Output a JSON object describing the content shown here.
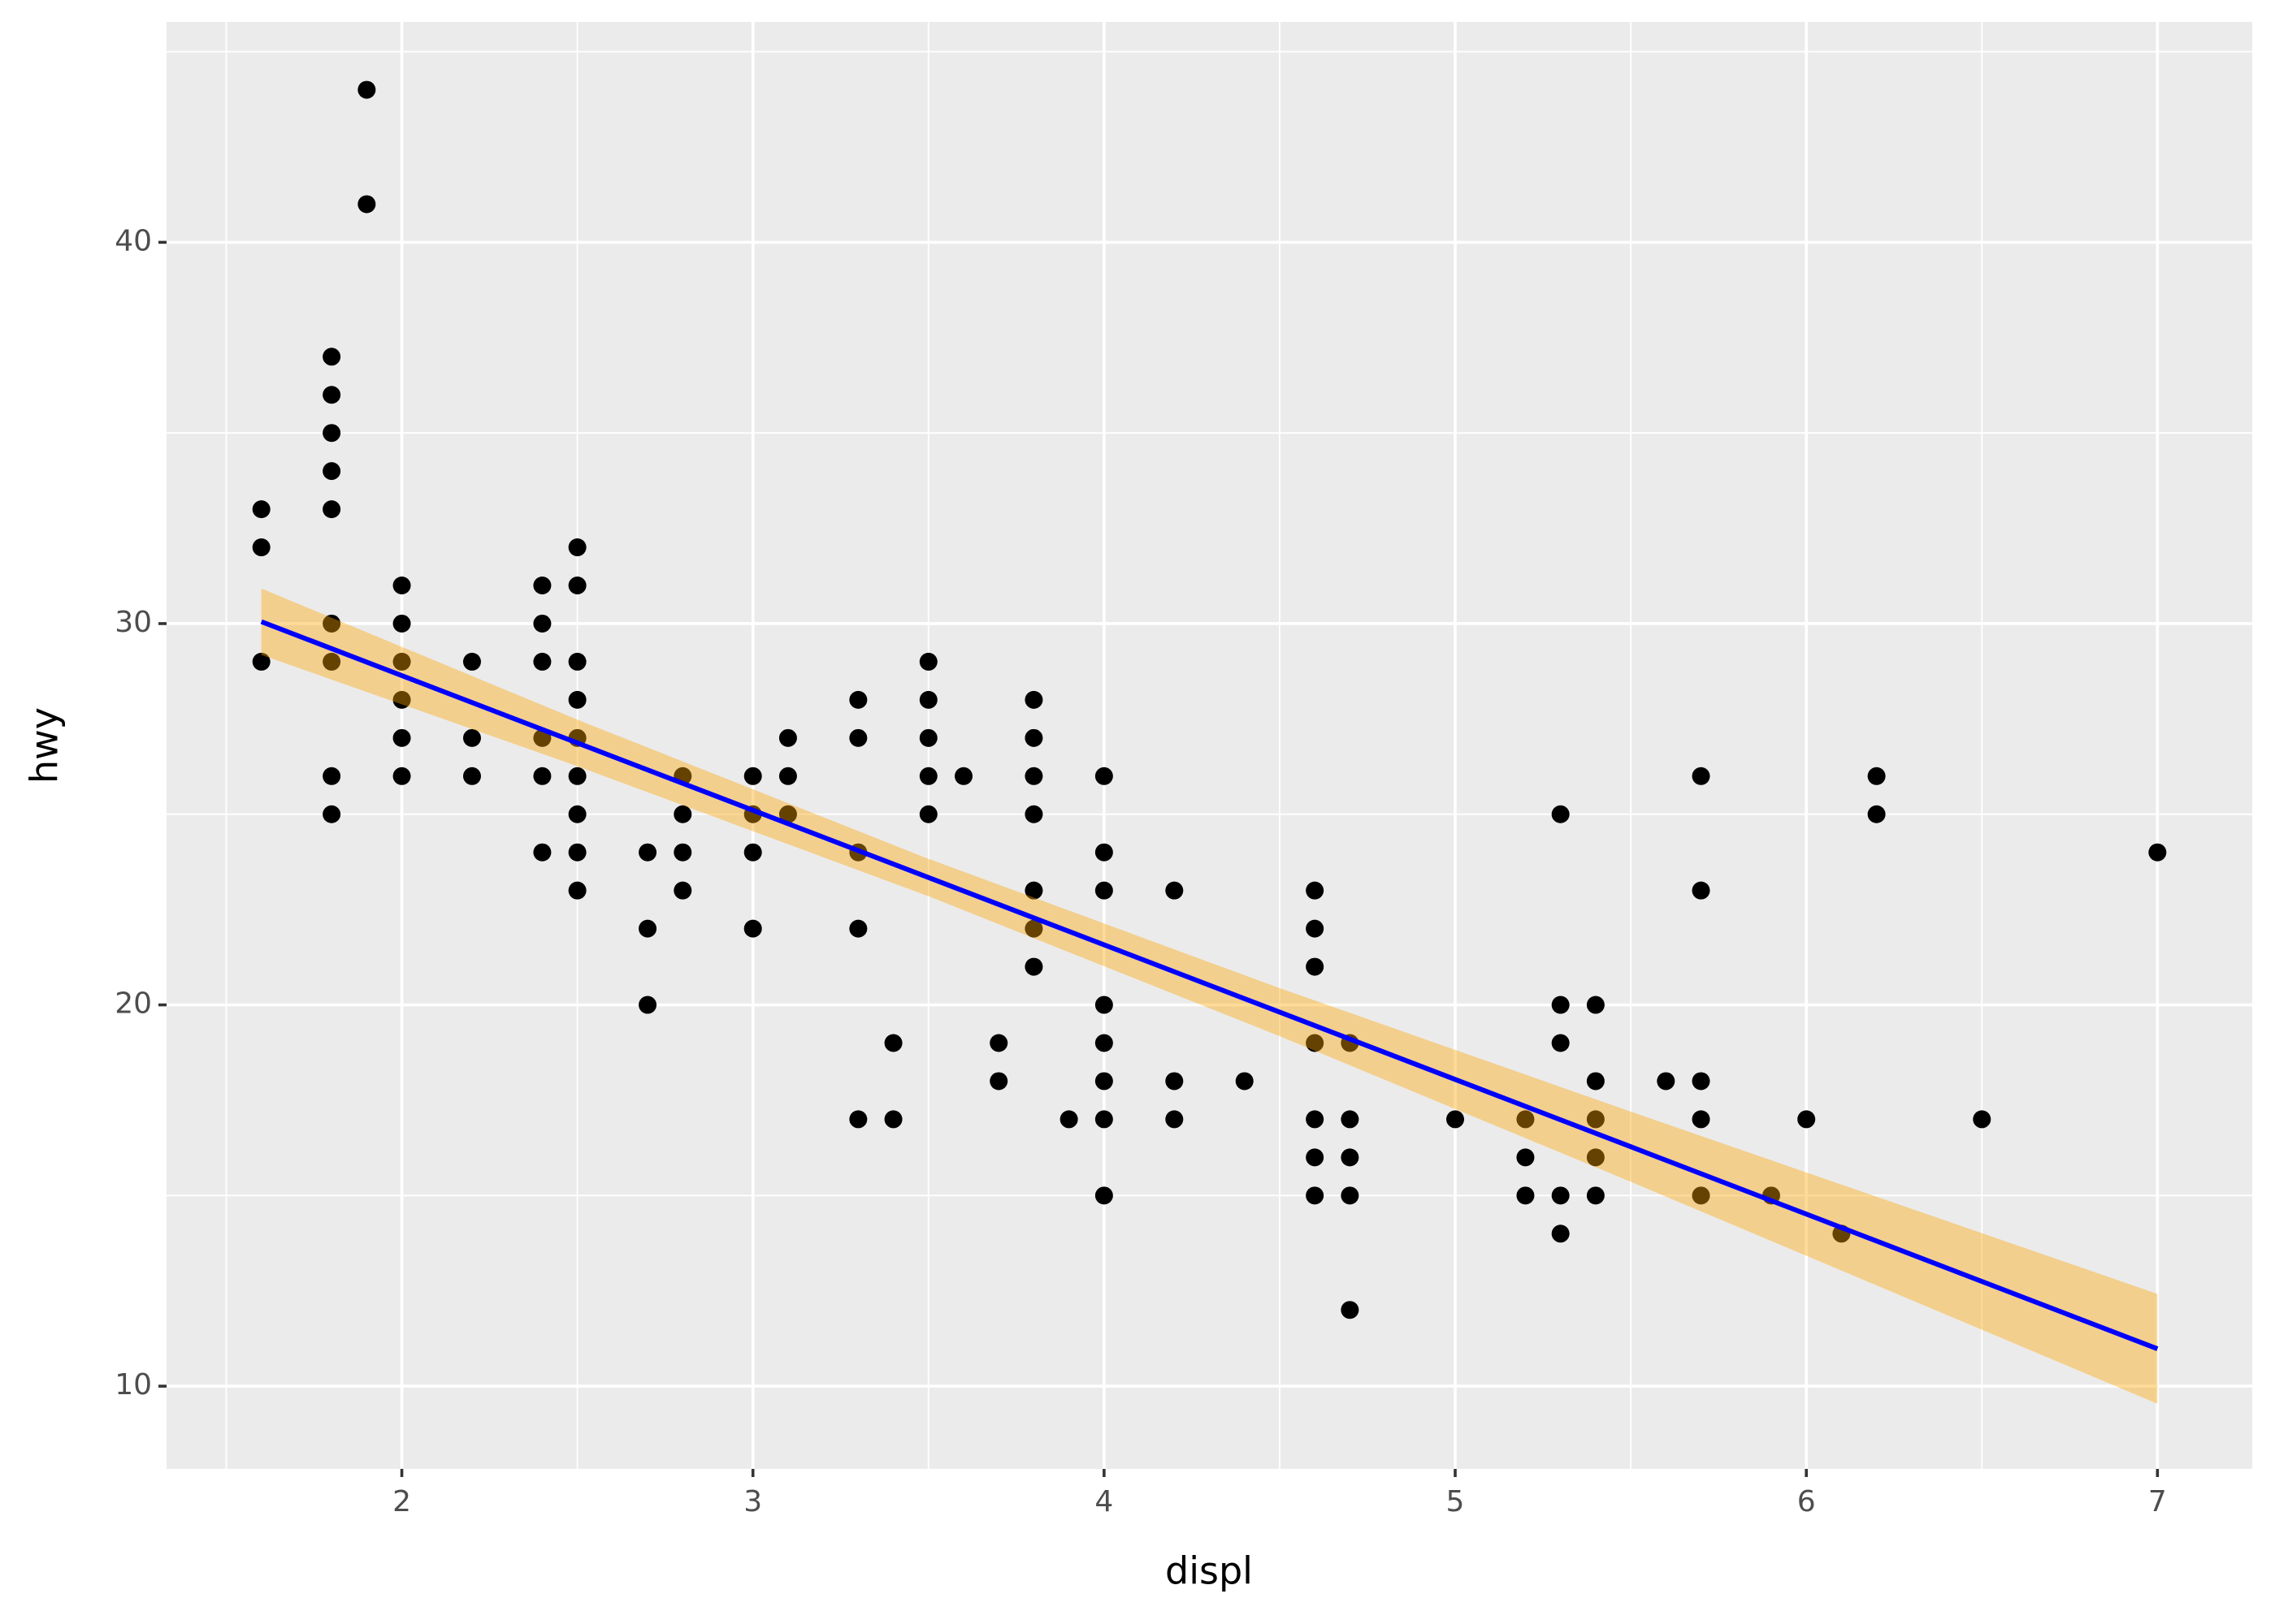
{
  "chart_data": {
    "type": "scatter",
    "x_label": "displ",
    "y_label": "hwy",
    "x": [
      1.6,
      1.6,
      1.6,
      1.8,
      1.8,
      1.8,
      1.8,
      1.8,
      1.8,
      1.8,
      1.8,
      1.8,
      1.9,
      1.9,
      2.0,
      2.0,
      2.0,
      2.0,
      2.0,
      2.0,
      2.2,
      2.2,
      2.2,
      2.4,
      2.4,
      2.4,
      2.4,
      2.4,
      2.4,
      2.5,
      2.5,
      2.5,
      2.5,
      2.5,
      2.5,
      2.5,
      2.5,
      2.5,
      2.7,
      2.7,
      2.7,
      2.8,
      2.8,
      2.8,
      2.8,
      3.0,
      3.0,
      3.0,
      3.0,
      3.1,
      3.1,
      3.1,
      3.3,
      3.3,
      3.3,
      3.3,
      3.3,
      3.4,
      3.4,
      3.5,
      3.5,
      3.5,
      3.5,
      3.5,
      3.6,
      3.7,
      3.7,
      3.8,
      3.8,
      3.8,
      3.8,
      3.8,
      3.8,
      3.8,
      3.9,
      4.0,
      4.0,
      4.0,
      4.0,
      4.0,
      4.0,
      4.0,
      4.0,
      4.2,
      4.2,
      4.2,
      4.4,
      4.6,
      4.6,
      4.6,
      4.6,
      4.6,
      4.6,
      4.6,
      4.7,
      4.7,
      4.7,
      4.7,
      4.7,
      5.0,
      5.2,
      5.2,
      5.2,
      5.3,
      5.3,
      5.3,
      5.3,
      5.3,
      5.4,
      5.4,
      5.4,
      5.4,
      5.4,
      5.6,
      5.7,
      5.7,
      5.7,
      5.7,
      5.7,
      5.9,
      6.0,
      6.1,
      6.2,
      6.2,
      6.5,
      7.0
    ],
    "y": [
      33,
      32,
      29,
      37,
      36,
      35,
      34,
      33,
      30,
      29,
      26,
      25,
      44,
      41,
      31,
      30,
      29,
      28,
      27,
      26,
      29,
      27,
      26,
      31,
      30,
      29,
      27,
      26,
      24,
      32,
      31,
      29,
      28,
      27,
      26,
      25,
      24,
      23,
      24,
      22,
      20,
      26,
      25,
      24,
      23,
      26,
      25,
      24,
      22,
      27,
      26,
      25,
      28,
      27,
      24,
      22,
      17,
      19,
      17,
      29,
      28,
      27,
      26,
      25,
      26,
      19,
      18,
      28,
      27,
      26,
      25,
      23,
      22,
      21,
      17,
      26,
      24,
      23,
      20,
      19,
      18,
      17,
      15,
      23,
      18,
      17,
      18,
      23,
      22,
      21,
      19,
      17,
      16,
      15,
      19,
      17,
      16,
      15,
      12,
      17,
      17,
      16,
      15,
      25,
      20,
      19,
      15,
      14,
      20,
      18,
      17,
      16,
      15,
      18,
      26,
      23,
      18,
      17,
      15,
      15,
      17,
      14,
      26,
      25,
      17,
      24
    ],
    "point_color": "#000000",
    "smooth": {
      "x": [
        1.6,
        2.5,
        3.5,
        4.5,
        5.5,
        7.0
      ],
      "fit": [
        30.05,
        26.87,
        23.34,
        19.81,
        16.28,
        10.98
      ],
      "lower": [
        29.18,
        26.26,
        22.85,
        19.18,
        15.36,
        9.54
      ],
      "upper": [
        30.92,
        27.48,
        23.83,
        20.44,
        17.2,
        12.42
      ],
      "color": "#0000ff",
      "fill": "#ffa500"
    },
    "xlim": [
      1.33,
      7.27
    ],
    "ylim": [
      7.83,
      45.78
    ],
    "xticks": [
      2,
      3,
      4,
      5,
      6,
      7
    ],
    "yticks": [
      10,
      20,
      30,
      40
    ],
    "minor_xticks": [
      1.5,
      2.5,
      3.5,
      4.5,
      5.5,
      6.5
    ],
    "minor_yticks": [
      15,
      25,
      35,
      45
    ],
    "grid": true
  }
}
